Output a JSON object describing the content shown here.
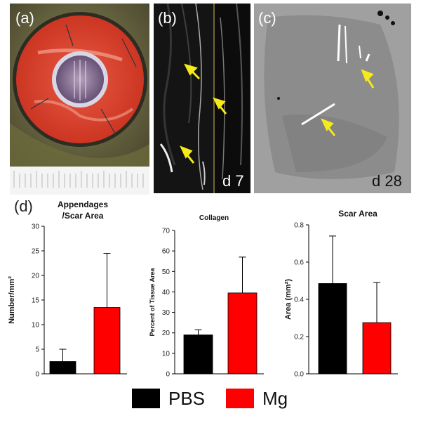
{
  "panels": {
    "a": {
      "label": "(a)"
    },
    "b": {
      "label": "(b)",
      "day": "d 7"
    },
    "c": {
      "label": "(c)",
      "day": "d 28"
    },
    "d": {
      "label": "(d)"
    }
  },
  "colors": {
    "pbs": "#000000",
    "mg": "#ff0000"
  },
  "legend": [
    {
      "name": "PBS",
      "color": "#000000"
    },
    {
      "name": "Mg",
      "color": "#ff0000"
    }
  ],
  "chart_data": [
    {
      "type": "bar",
      "title_lines": [
        "Appendages",
        "/Scar Area"
      ],
      "ylabel": "Number/mm²",
      "categories": [
        "PBS",
        "Mg"
      ],
      "values": [
        2.5,
        13.5
      ],
      "errors": [
        2.5,
        11.0
      ],
      "ylim": [
        0,
        30
      ],
      "yticks": [
        0,
        5,
        10,
        15,
        20,
        25,
        30
      ],
      "ytick_labels": [
        "0",
        "5",
        "10",
        "15",
        "20",
        "25",
        "30"
      ]
    },
    {
      "type": "bar",
      "title_lines": [
        "Collagen"
      ],
      "ylabel": "Percent of Tissue Area",
      "categories": [
        "PBS",
        "Mg"
      ],
      "values": [
        19.0,
        39.5
      ],
      "errors": [
        2.5,
        17.5
      ],
      "ylim": [
        0,
        70
      ],
      "yticks": [
        0,
        10,
        20,
        30,
        40,
        50,
        60,
        70
      ],
      "ytick_labels": [
        "0",
        "10",
        "20",
        "30",
        "40",
        "50",
        "60",
        "70"
      ]
    },
    {
      "type": "bar",
      "title_lines": [
        "Scar Area"
      ],
      "ylabel": "Area (mm²)",
      "categories": [
        "PBS",
        "Mg"
      ],
      "values": [
        0.485,
        0.275
      ],
      "errors": [
        0.255,
        0.215
      ],
      "ylim": [
        0,
        0.8
      ],
      "yticks": [
        0,
        0.2,
        0.4,
        0.6,
        0.8
      ],
      "ytick_labels": [
        "0.0",
        "0.2",
        "0.4",
        "0.6",
        "0.8"
      ]
    }
  ]
}
